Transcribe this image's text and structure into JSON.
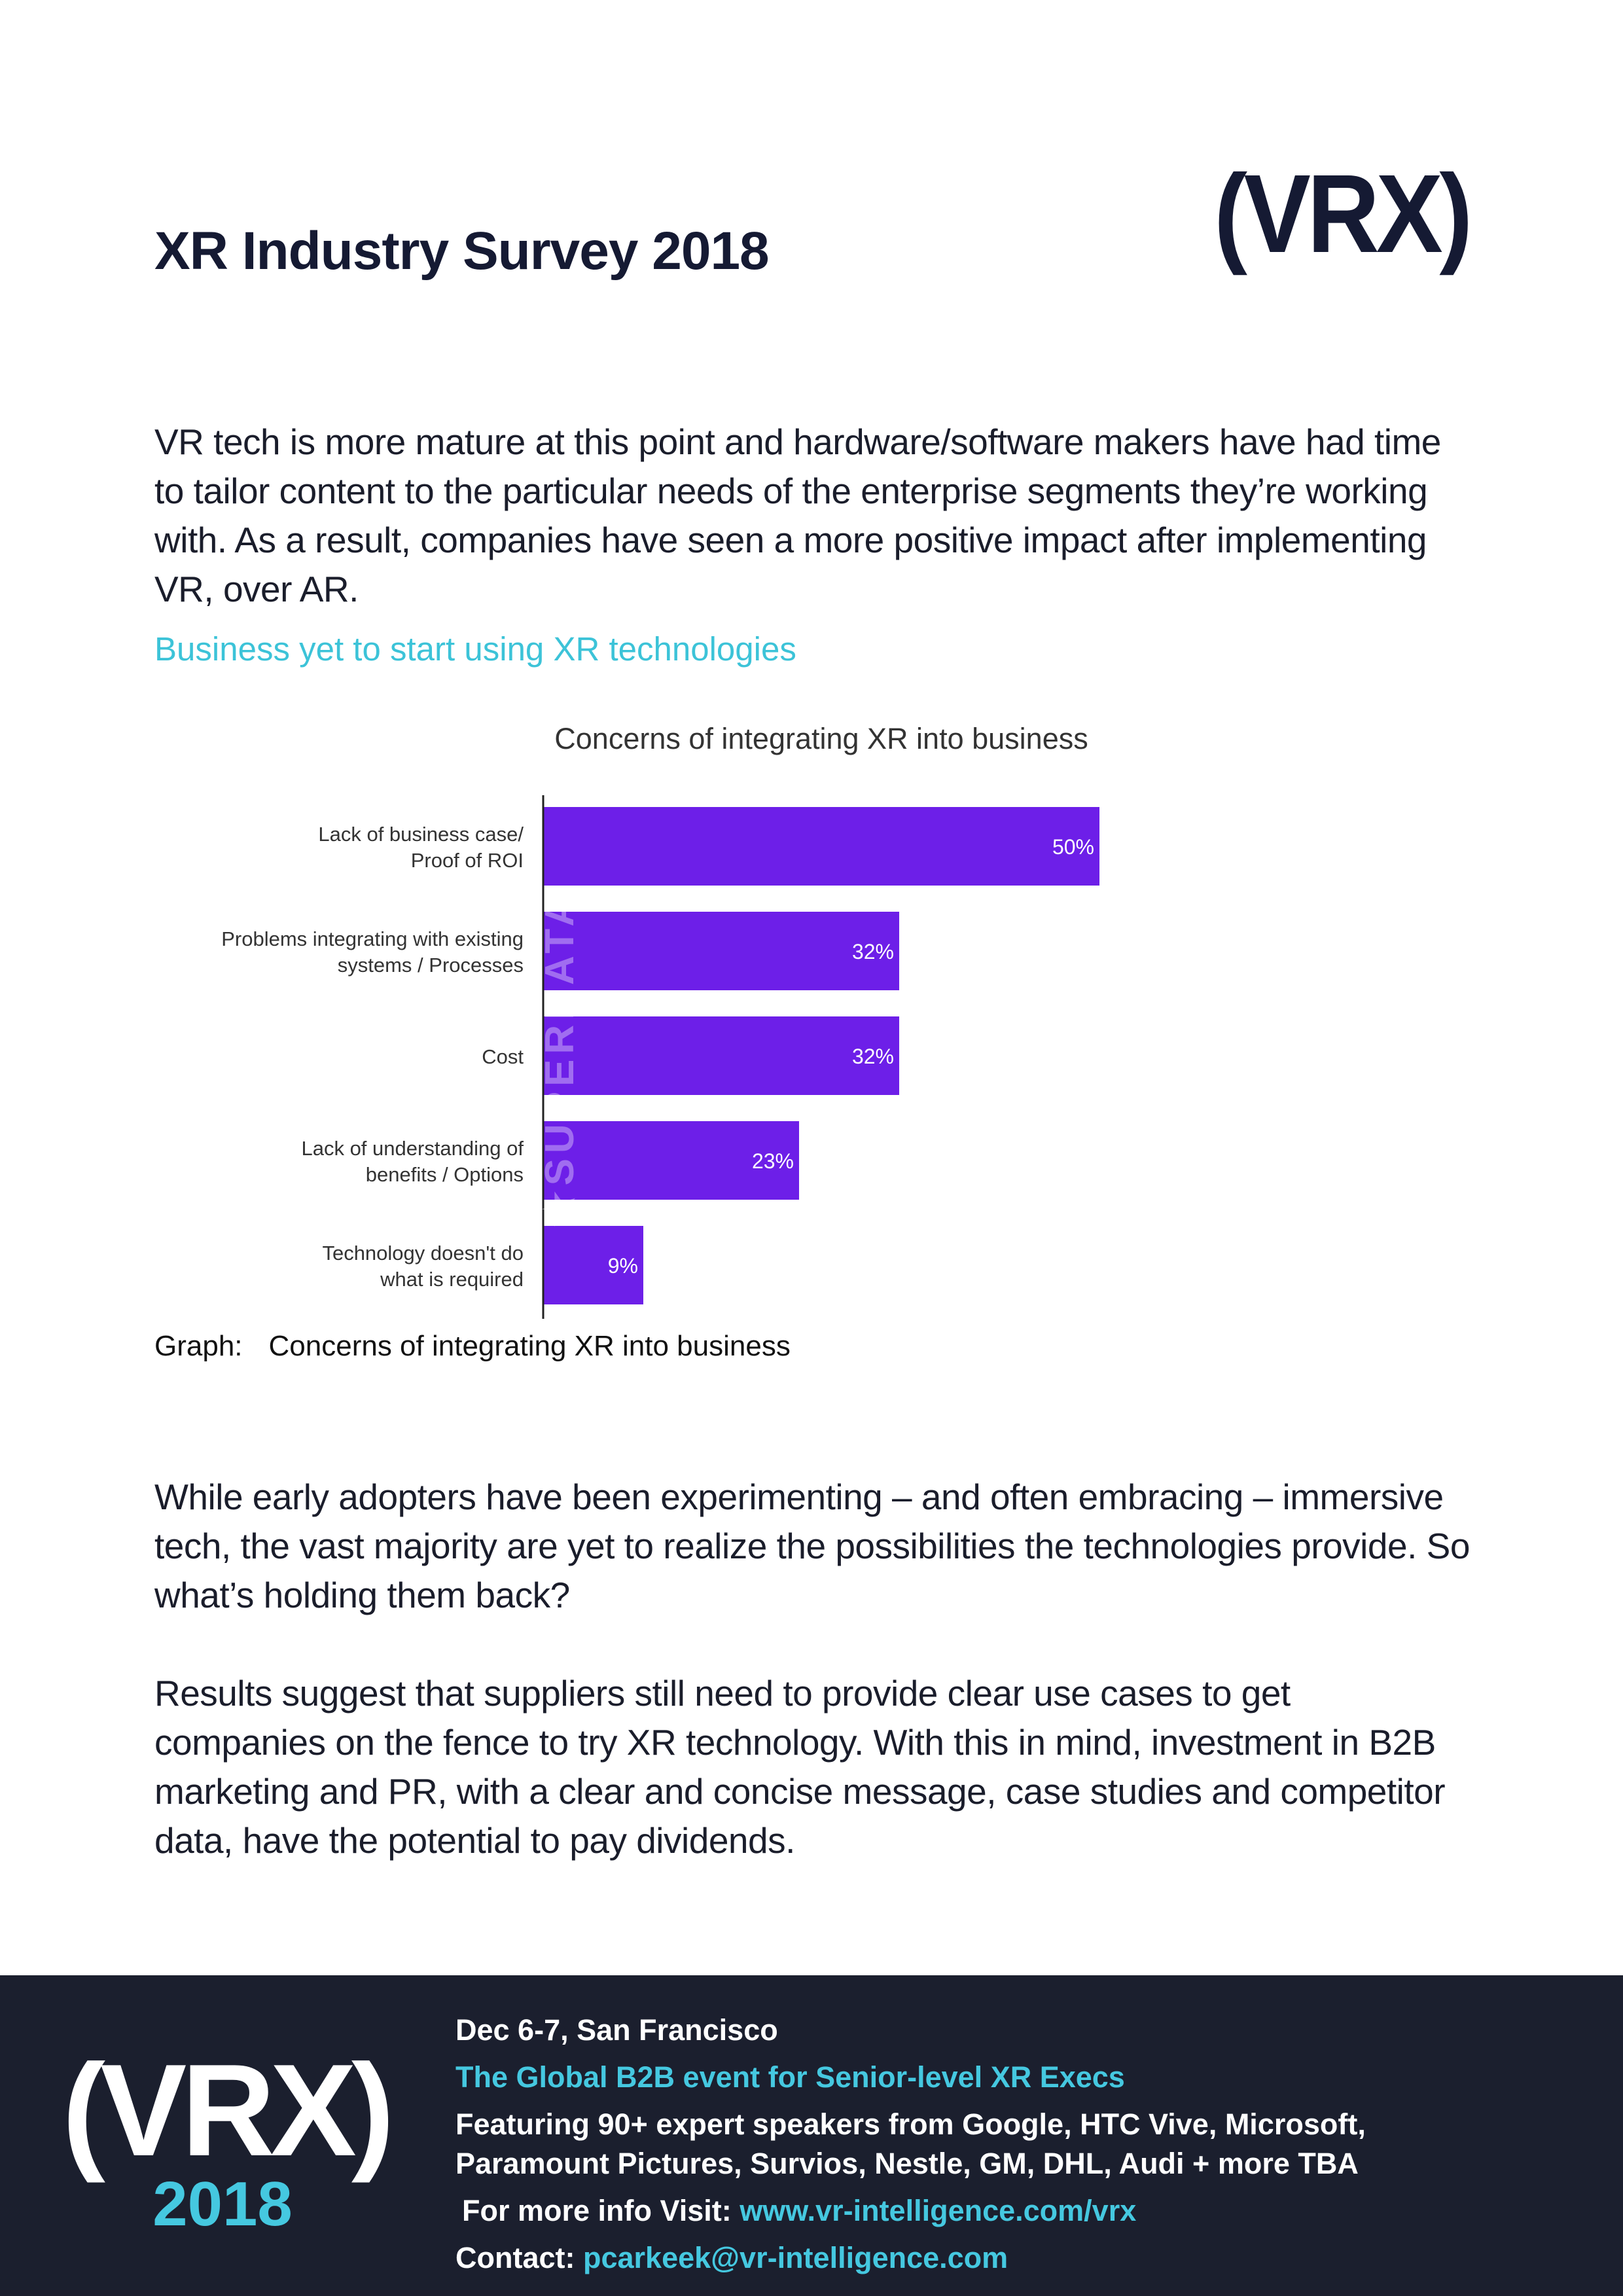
{
  "header": {
    "title": "XR Industry Survey 2018",
    "logo_text": "(VRX)"
  },
  "intro": "VR tech is more mature at this point and hardware/software makers have had time to tailor content to the particular needs of the enterprise segments they’re working with. As a result, companies have seen a more positive impact after implementing VR, over AR.",
  "section_heading": "Business yet to start using XR technologies",
  "chart_data": {
    "type": "bar",
    "orientation": "horizontal",
    "title": "Concerns of integrating XR into business",
    "categories": [
      [
        "Lack of business case/",
        "Proof of ROI"
      ],
      [
        "Problems integrating with existing",
        "systems / Processes"
      ],
      [
        "Cost"
      ],
      [
        "Lack of understanding of",
        "benefits / Options"
      ],
      [
        "Technology doesn't do",
        "what is required"
      ]
    ],
    "values": [
      50,
      32,
      32,
      23,
      9
    ],
    "value_labels": [
      "50%",
      "32%",
      "32%",
      "23%",
      "9%"
    ],
    "xlim": [
      0,
      50
    ],
    "bar_color": "#6d1fe8",
    "watermark": "SUPERDATA",
    "grid": false,
    "legend": "none"
  },
  "caption": {
    "label": "Graph:",
    "text": "Concerns of integrating XR into business"
  },
  "body": {
    "p2": "While early adopters have been experimenting – and often embracing – immersive tech, the vast majority are yet to realize the possibilities the technologies provide. So what’s holding them back?",
    "p3": "Results suggest that suppliers still need to provide clear use cases to get companies on the fence to try XR technology. With this in mind, investment in B2B marketing and PR, with a clear and concise message, case studies and competitor data, have the potential to pay dividends."
  },
  "footer": {
    "logo_text": "(VRX)",
    "logo_year": "2018",
    "date_location": "Dec 6-7, San Francisco",
    "tagline": "The Global B2B event for Senior-level XR Execs",
    "featuring_line1": "Featuring 90+ expert speakers from Google, HTC Vive, Microsoft,",
    "featuring_line2": "Paramount Pictures, Survios, Nestle, GM, DHL, Audi + more TBA",
    "info_label": "For more info Visit:",
    "info_url": "www.vr-intelligence.com/vrx",
    "contact_label": "Contact:",
    "contact_email": "pcarkeek@vr-intelligence.com"
  },
  "colors": {
    "navy": "#151a33",
    "accent": "#3cc3d8",
    "bar": "#6d1fe8",
    "footer_bg": "#1b1f2e"
  }
}
